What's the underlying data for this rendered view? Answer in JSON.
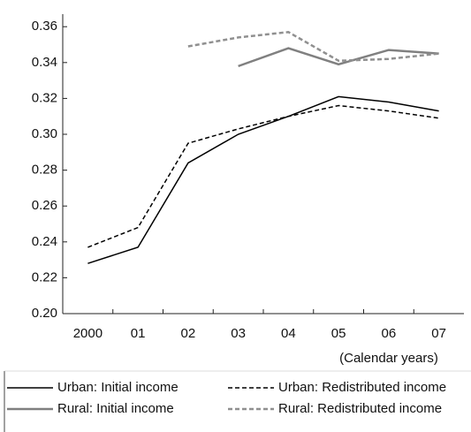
{
  "chart_data": {
    "type": "line",
    "categories": [
      "2000",
      "01",
      "02",
      "03",
      "04",
      "05",
      "06",
      "07"
    ],
    "x_label": "(Calendar years)",
    "series": [
      {
        "name": "Urban: Initial income",
        "color": "#000000",
        "dash": "solid",
        "values": [
          0.228,
          0.237,
          0.284,
          0.3,
          0.31,
          0.321,
          0.318,
          0.313
        ]
      },
      {
        "name": "Urban: Redistributed income",
        "color": "#000000",
        "dash": "dashed",
        "values": [
          0.237,
          0.248,
          0.295,
          0.303,
          0.31,
          0.316,
          0.313,
          0.309
        ]
      },
      {
        "name": "Rural: Initial income",
        "color": "#808080",
        "dash": "solid",
        "values": [
          null,
          null,
          null,
          0.338,
          0.348,
          0.339,
          0.347,
          0.345
        ]
      },
      {
        "name": "Rural: Redistributed income",
        "color": "#909090",
        "dash": "dashed",
        "values": [
          null,
          null,
          0.349,
          0.354,
          0.357,
          0.341,
          0.342,
          0.345
        ]
      }
    ],
    "ylim": [
      0.2,
      0.367
    ],
    "yticks": [
      {
        "value": 0.2,
        "label": "0.20"
      },
      {
        "value": 0.22,
        "label": "0.22"
      },
      {
        "value": 0.24,
        "label": "0.24"
      },
      {
        "value": 0.26,
        "label": "0.26"
      },
      {
        "value": 0.28,
        "label": "0.28"
      },
      {
        "value": 0.3,
        "label": "0.30"
      },
      {
        "value": 0.32,
        "label": "0.32"
      },
      {
        "value": 0.34,
        "label": "0.34"
      },
      {
        "value": 0.36,
        "label": "0.36"
      }
    ],
    "grid": false
  }
}
